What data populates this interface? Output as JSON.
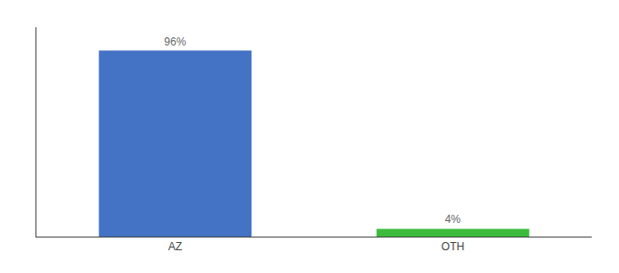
{
  "chart_data": {
    "type": "bar",
    "categories": [
      "AZ",
      "OTH"
    ],
    "values": [
      96,
      4
    ],
    "value_labels": [
      "96%",
      "4%"
    ],
    "colors": [
      "#4472c4",
      "#3dbb3d"
    ],
    "ylim": [
      0,
      108
    ],
    "data_labels": true,
    "tick_labels": "x",
    "grid": false
  }
}
